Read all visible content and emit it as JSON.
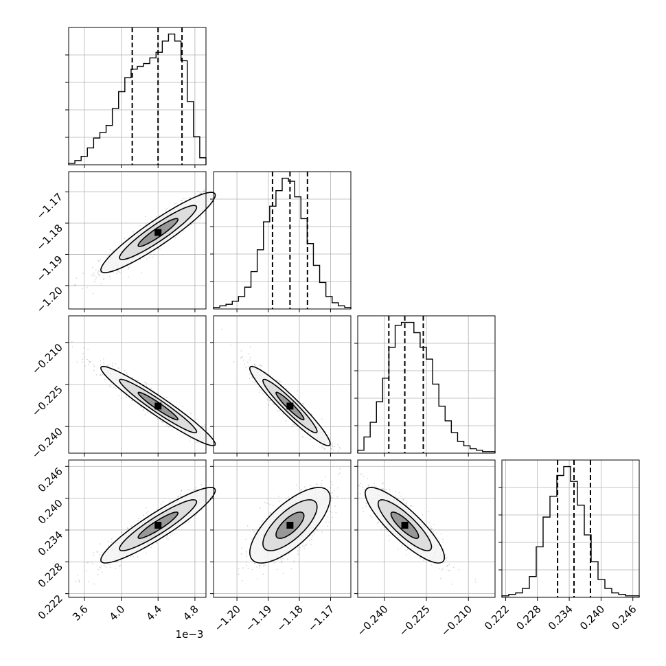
{
  "chart_data": {
    "type": "corner",
    "title": "",
    "grid": true,
    "parameters": [
      {
        "index": 0,
        "range": [
          0.00343,
          0.00492
        ],
        "ticks": [
          "3.6",
          "4.0",
          "4.4",
          "4.8"
        ],
        "tick_values": [
          0.0036,
          0.004,
          0.0044,
          0.0048
        ],
        "offset_label": "1e−3",
        "quantiles": [
          0.00412,
          0.0044,
          0.00466
        ]
      },
      {
        "index": 1,
        "range": [
          -1.2075,
          -1.1635
        ],
        "ticks": [
          "−1.20",
          "−1.19",
          "−1.18",
          "−1.17"
        ],
        "tick_values": [
          -1.2,
          -1.19,
          -1.18,
          -1.17
        ],
        "quantiles": [
          -1.1886,
          -1.183,
          -1.1774
        ]
      },
      {
        "index": 2,
        "range": [
          -0.2495,
          -0.2005
        ],
        "ticks": [
          "−0.240",
          "−0.225",
          "−0.210"
        ],
        "tick_values": [
          -0.24,
          -0.225,
          -0.21
        ],
        "quantiles": [
          -0.2384,
          -0.2327,
          -0.2261
        ]
      },
      {
        "index": 3,
        "range": [
          0.2213,
          0.2472
        ],
        "ticks": [
          "0.222",
          "0.228",
          "0.234",
          "0.240",
          "0.246"
        ],
        "tick_values": [
          0.222,
          0.228,
          0.234,
          0.24,
          0.246
        ],
        "quantiles": [
          0.2318,
          0.2349,
          0.238
        ]
      }
    ],
    "histograms": [
      [
        1,
        3,
        6,
        12,
        19,
        23,
        28,
        40,
        52,
        62,
        68,
        70,
        72,
        76,
        80,
        88,
        93,
        88,
        74,
        45,
        20,
        5
      ],
      [
        1,
        2,
        3,
        5,
        8,
        14,
        24,
        38,
        56,
        66,
        76,
        84,
        82,
        72,
        58,
        42,
        28,
        17,
        8,
        4,
        2,
        1
      ],
      [
        2,
        11,
        21,
        35,
        51,
        72,
        87,
        89,
        89,
        82,
        72,
        64,
        47,
        32,
        22,
        14,
        8,
        5,
        3,
        2,
        1,
        1
      ],
      [
        1,
        2,
        3,
        6,
        14,
        34,
        54,
        68,
        82,
        88,
        78,
        62,
        42,
        24,
        12,
        6,
        3,
        2,
        1,
        1
      ]
    ],
    "correlations": {
      "1-0": 0.93,
      "2-0": -0.96,
      "2-1": -0.95,
      "3-0": 0.92,
      "3-1": 0.72,
      "3-2": -0.85
    },
    "axis_label_x": "",
    "axis_label_y": ""
  }
}
